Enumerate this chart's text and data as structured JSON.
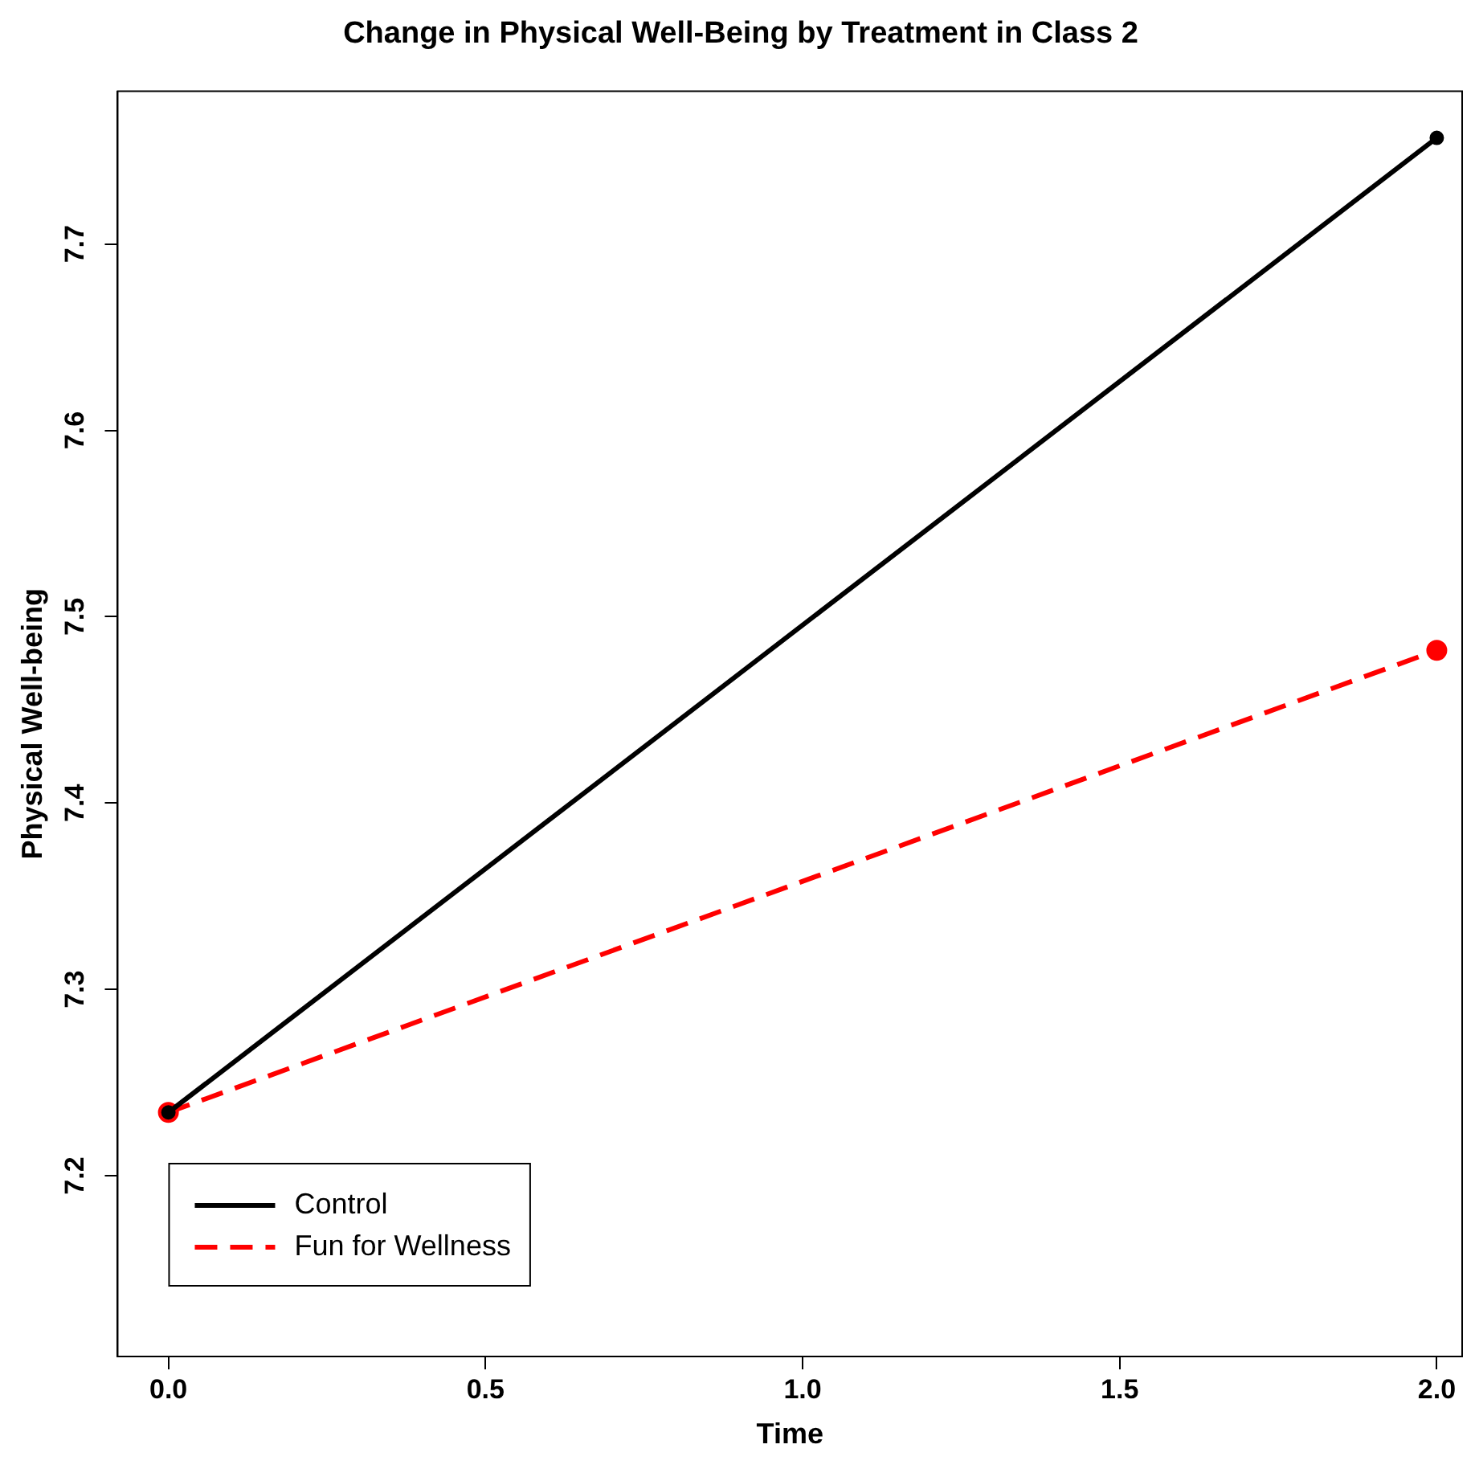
{
  "chart_data": {
    "type": "line",
    "title": "Change in Physical Well-Being by Treatment in Class 2",
    "xlabel": "Time",
    "ylabel": "Physical Well-being",
    "x": [
      0,
      2
    ],
    "series": [
      {
        "name": "Control",
        "color": "#000000",
        "values": [
          7.234,
          7.757
        ],
        "line_style": "solid"
      },
      {
        "name": "Fun for Wellness",
        "color": "#ff0000",
        "values": [
          7.234,
          7.482
        ],
        "line_style": "dashed"
      }
    ],
    "xlim": [
      -0.08,
      2.04
    ],
    "xticks": [
      {
        "value": 0,
        "label": "0.0"
      },
      {
        "value": 0.5,
        "label": "0.5"
      },
      {
        "value": 1,
        "label": "1.0"
      },
      {
        "value": 1.5,
        "label": "1.5"
      },
      {
        "value": 2,
        "label": "2.0"
      }
    ],
    "ylim": [
      7.103,
      7.782
    ],
    "yticks": [
      7.2,
      7.3,
      7.4,
      7.5,
      7.6,
      7.7
    ],
    "grid": false,
    "legend": "bottom left",
    "marker": "circle"
  }
}
